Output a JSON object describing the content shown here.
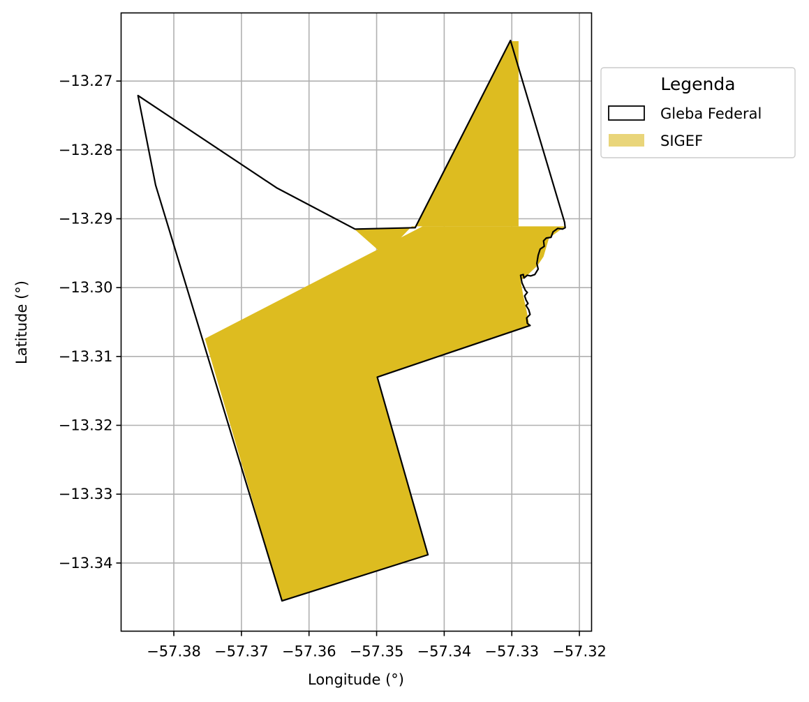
{
  "chart_data": {
    "type": "map",
    "xlabel": "Longitude (°)",
    "ylabel": "Latitude (°)",
    "xlim": [
      -57.3878,
      -57.3182
    ],
    "ylim": [
      -13.3499,
      -13.2601
    ],
    "xticks": [
      -57.38,
      -57.37,
      -57.36,
      -57.35,
      -57.34,
      -57.33,
      -57.32
    ],
    "xtick_labels": [
      "−57.38",
      "−57.37",
      "−57.36",
      "−57.35",
      "−57.34",
      "−57.33",
      "−57.32"
    ],
    "yticks": [
      -13.27,
      -13.28,
      -13.29,
      -13.3,
      -13.31,
      -13.32,
      -13.33,
      -13.34
    ],
    "ytick_labels": [
      "−13.27",
      "−13.28",
      "−13.29",
      "−13.30",
      "−13.31",
      "−13.32",
      "−13.33",
      "−13.34"
    ],
    "grid": true,
    "legend": {
      "title": "Legenda",
      "placement": "outside-upper-right",
      "entries": [
        {
          "label": "Gleba Federal",
          "style": "outline",
          "edge_color": "#000000",
          "fill": "none"
        },
        {
          "label": "SIGEF",
          "style": "fill",
          "fill": "#e9d57a"
        }
      ]
    },
    "sigef_color": "#ddbc20",
    "boundary_color": "#000000",
    "sigef_polygons": [
      [
        [
          -57.3533,
          -13.2915
        ],
        [
          -57.3442,
          -13.2913
        ],
        [
          -57.3302,
          -13.2642
        ],
        [
          -57.329,
          -13.2642
        ],
        [
          -57.329,
          -13.2911
        ],
        [
          -57.3448,
          -13.2911
        ],
        [
          -57.3489,
          -13.2953
        ]
      ],
      [
        [
          -57.3432,
          -13.2911
        ],
        [
          -57.3221,
          -13.2911
        ],
        [
          -57.3245,
          -13.2928
        ],
        [
          -57.3253,
          -13.2955
        ],
        [
          -57.3262,
          -13.2968
        ],
        [
          -57.3278,
          -13.2983
        ],
        [
          -57.3287,
          -13.299
        ],
        [
          -57.3283,
          -13.3012
        ],
        [
          -57.3278,
          -13.3034
        ],
        [
          -57.3275,
          -13.305
        ],
        [
          -57.3275,
          -13.3055
        ],
        [
          -57.3499,
          -13.313
        ],
        [
          -57.3424,
          -13.3388
        ],
        [
          -57.364,
          -13.3455
        ],
        [
          -57.3754,
          -13.3074
        ]
      ]
    ],
    "gleba_boundary": [
      [
        -57.3853,
        -13.2721
      ],
      [
        -57.3648,
        -13.2855
      ],
      [
        -57.3532,
        -13.2915
      ],
      [
        -57.3443,
        -13.2913
      ],
      [
        -57.3302,
        -13.2641
      ],
      [
        -57.3222,
        -13.2905
      ],
      [
        -57.3221,
        -13.2913
      ],
      [
        -57.3225,
        -13.2915
      ],
      [
        -57.3232,
        -13.2914
      ],
      [
        -57.3239,
        -13.2919
      ],
      [
        -57.3242,
        -13.2927
      ],
      [
        -57.3249,
        -13.2928
      ],
      [
        -57.3253,
        -13.2932
      ],
      [
        -57.3252,
        -13.294
      ],
      [
        -57.3258,
        -13.2944
      ],
      [
        -57.3261,
        -13.2953
      ],
      [
        -57.3263,
        -13.2965
      ],
      [
        -57.3261,
        -13.2973
      ],
      [
        -57.3266,
        -13.2981
      ],
      [
        -57.3272,
        -13.2983
      ],
      [
        -57.3277,
        -13.2982
      ],
      [
        -57.3282,
        -13.2986
      ],
      [
        -57.3283,
        -13.2981
      ],
      [
        -57.3287,
        -13.2982
      ],
      [
        -57.3285,
        -13.2993
      ],
      [
        -57.328,
        -13.3004
      ],
      [
        -57.3277,
        -13.3007
      ],
      [
        -57.3281,
        -13.3012
      ],
      [
        -57.3279,
        -13.3018
      ],
      [
        -57.3276,
        -13.3023
      ],
      [
        -57.3279,
        -13.3026
      ],
      [
        -57.3275,
        -13.3032
      ],
      [
        -57.3273,
        -13.3039
      ],
      [
        -57.3278,
        -13.3044
      ],
      [
        -57.3277,
        -13.3052
      ],
      [
        -57.3273,
        -13.3055
      ],
      [
        -57.3499,
        -13.313
      ],
      [
        -57.3424,
        -13.3388
      ],
      [
        -57.364,
        -13.3455
      ],
      [
        -57.3827,
        -13.2851
      ]
    ]
  }
}
